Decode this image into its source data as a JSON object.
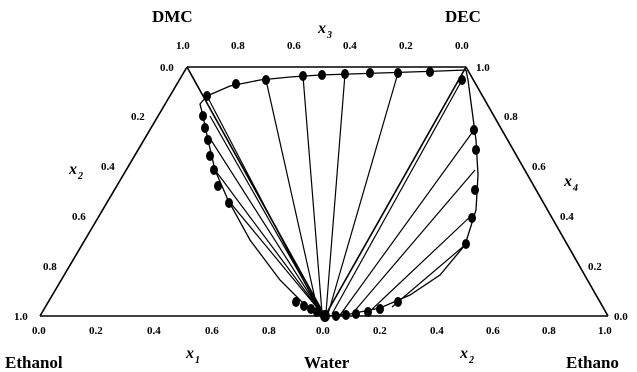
{
  "vertices": {
    "dmc": "DMC",
    "dec": "DEC",
    "ethanol_left": "Ethanol",
    "water": "Water",
    "ethanol_right": "Ethano"
  },
  "axes": {
    "x1": {
      "symbol": "x",
      "sub": "1",
      "ticks": [
        "0.0",
        "0.2",
        "0.4",
        "0.6",
        "0.8",
        "1.0"
      ]
    },
    "x2_left": {
      "symbol": "x",
      "sub": "2",
      "ticks": [
        "0.0",
        "0.2",
        "0.4",
        "0.6",
        "0.8",
        "1.0"
      ]
    },
    "x3": {
      "symbol": "x",
      "sub": "3",
      "ticks": [
        "1.0",
        "0.8",
        "0.6",
        "0.4",
        "0.2",
        "0.0"
      ]
    },
    "x4": {
      "symbol": "x",
      "sub": "4",
      "ticks": [
        "1.0",
        "0.8",
        "0.6",
        "0.4",
        "0.2",
        "0.0"
      ]
    },
    "x2_bottom": {
      "symbol": "x",
      "sub": "2",
      "ticks": [
        "0.0",
        "0.2",
        "0.4",
        "0.6",
        "0.8",
        "1.0"
      ]
    }
  },
  "bottom_ticks_left": [
    "0.0",
    "0.2",
    "0.4",
    "0.6",
    "0.8",
    "0.0"
  ],
  "bottom_ticks_right": [
    "0.2",
    "0.4",
    "0.6",
    "0.8",
    "1.0"
  ],
  "top_ticks": [
    "1.0",
    "0.8",
    "0.6",
    "0.4",
    "0.2",
    "0.0"
  ],
  "left_ticks": [
    "0.0",
    "0.2",
    "0.4",
    "0.6",
    "0.8",
    "1.0"
  ],
  "right_ticks": [
    "1.0",
    "0.8",
    "0.6",
    "0.4",
    "0.2",
    "0.0"
  ]
}
